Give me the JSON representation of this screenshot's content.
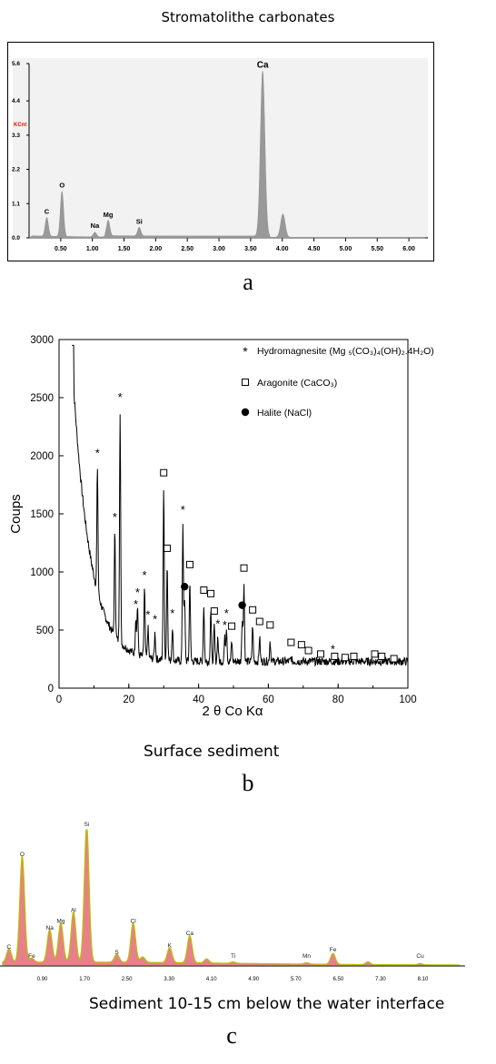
{
  "figure_a": {
    "title": "Stromatolithe carbonates",
    "letter": "a",
    "chart_data": {
      "type": "area",
      "x_ticks": [
        "0.50",
        "1.00",
        "1.50",
        "2.00",
        "2.50",
        "3.00",
        "3.50",
        "4.00",
        "4.50",
        "5.00",
        "5.50",
        "6.00"
      ],
      "y_ticks": [
        "0.0",
        "1.1",
        "2.2",
        "3.3",
        "4.4",
        "5.6"
      ],
      "ylabel": "KCnt",
      "xlim": [
        0,
        6.3
      ],
      "ylim": [
        0,
        5.6
      ],
      "grid": false,
      "peaks": [
        {
          "label": "C",
          "x": 0.28,
          "y": 0.6
        },
        {
          "label": "O",
          "x": 0.52,
          "y": 1.45
        },
        {
          "label": "Na",
          "x": 1.04,
          "y": 0.15
        },
        {
          "label": "Mg",
          "x": 1.25,
          "y": 0.5
        },
        {
          "label": "Si",
          "x": 1.74,
          "y": 0.28
        },
        {
          "label": "Ca",
          "x": 3.69,
          "y": 5.3
        }
      ],
      "unlabeled_peaks": [
        {
          "x": 4.01,
          "y": 0.75
        }
      ]
    }
  },
  "figure_b": {
    "letter": "b",
    "caption": "Surface sediment",
    "chart_data": {
      "type": "line",
      "xlabel": "2 θ Co Kα",
      "ylabel": "Coups",
      "xlim": [
        0,
        100
      ],
      "ylim": [
        0,
        3000
      ],
      "x_ticks": [
        0,
        20,
        40,
        60,
        80,
        100
      ],
      "y_ticks": [
        0,
        500,
        1000,
        1500,
        2000,
        2500,
        3000
      ],
      "legend": [
        {
          "marker": "star",
          "text": "Hydromagnesite (Mg ₅(CO₃)₄(OH)₂.4H₂O)"
        },
        {
          "marker": "square",
          "text": "Aragonite (CaCO₃)"
        },
        {
          "marker": "circle",
          "text": "Halite (NaCl)"
        }
      ],
      "legend_position": "top-right",
      "background_decay": {
        "A": 2600,
        "k": 0.2,
        "base": 230
      },
      "peaks": [
        {
          "x": 11,
          "y": 1950,
          "marker": "star"
        },
        {
          "x": 16,
          "y": 1400,
          "marker": "star"
        },
        {
          "x": 17.5,
          "y": 2430,
          "marker": "star"
        },
        {
          "x": 22,
          "y": 650,
          "marker": "star"
        },
        {
          "x": 22.5,
          "y": 750,
          "marker": "star"
        },
        {
          "x": 24.5,
          "y": 900,
          "marker": "star"
        },
        {
          "x": 25.5,
          "y": 560,
          "marker": "star"
        },
        {
          "x": 27.5,
          "y": 520,
          "marker": "star"
        },
        {
          "x": 30,
          "y": 1760,
          "marker": "square"
        },
        {
          "x": 31,
          "y": 1110,
          "marker": "square"
        },
        {
          "x": 32.5,
          "y": 570,
          "marker": "star"
        },
        {
          "x": 35.5,
          "y": 1460,
          "marker": "star"
        },
        {
          "x": 36,
          "y": 780,
          "marker": "circle"
        },
        {
          "x": 37.5,
          "y": 970,
          "marker": "square"
        },
        {
          "x": 41.5,
          "y": 750,
          "marker": "square"
        },
        {
          "x": 43.5,
          "y": 720,
          "marker": "square"
        },
        {
          "x": 44.5,
          "y": 570,
          "marker": "square"
        },
        {
          "x": 45.5,
          "y": 480,
          "marker": "star"
        },
        {
          "x": 47.5,
          "y": 470,
          "marker": "star"
        },
        {
          "x": 48,
          "y": 570,
          "marker": "star"
        },
        {
          "x": 49.5,
          "y": 440,
          "marker": "square"
        },
        {
          "x": 52.5,
          "y": 620,
          "marker": "circle"
        },
        {
          "x": 53,
          "y": 940,
          "marker": "square"
        },
        {
          "x": 55.5,
          "y": 580,
          "marker": "square"
        },
        {
          "x": 57.5,
          "y": 480,
          "marker": "square"
        },
        {
          "x": 60.5,
          "y": 450,
          "marker": "square"
        },
        {
          "x": 66.5,
          "y": 300,
          "marker": "square"
        },
        {
          "x": 69.5,
          "y": 280,
          "marker": "square"
        },
        {
          "x": 71.5,
          "y": 230,
          "marker": "square"
        },
        {
          "x": 75,
          "y": 200,
          "marker": "square"
        },
        {
          "x": 78.5,
          "y": 260,
          "marker": "star"
        },
        {
          "x": 79,
          "y": 180,
          "marker": "square"
        },
        {
          "x": 82,
          "y": 170,
          "marker": "square"
        },
        {
          "x": 84.5,
          "y": 180,
          "marker": "square"
        },
        {
          "x": 90.5,
          "y": 200,
          "marker": "square"
        },
        {
          "x": 92.5,
          "y": 180,
          "marker": "square"
        },
        {
          "x": 96,
          "y": 160,
          "marker": "square"
        }
      ]
    }
  },
  "figure_c": {
    "letter": "c",
    "caption": "Sediment 10-15 cm below the water interface",
    "chart_data": {
      "type": "area",
      "x_ticks": [
        "0.90",
        "1.70",
        "2.50",
        "3.30",
        "4.10",
        "4.90",
        "5.70",
        "6.50",
        "7.30",
        "8.10"
      ],
      "xlim": [
        0.1,
        8.9
      ],
      "ylim": [
        0,
        100
      ],
      "colors": {
        "fill": "#e8808a",
        "outline": "#b8c000"
      },
      "peaks": [
        {
          "label": "C",
          "x": 0.27,
          "y": 10
        },
        {
          "label": "O",
          "x": 0.52,
          "y": 78
        },
        {
          "label": "Fe",
          "x": 0.7,
          "y": 3
        },
        {
          "label": "Na",
          "x": 1.04,
          "y": 24
        },
        {
          "label": "Mg",
          "x": 1.25,
          "y": 29
        },
        {
          "label": "Al",
          "x": 1.49,
          "y": 37
        },
        {
          "label": "Si",
          "x": 1.74,
          "y": 100
        },
        {
          "label": "S",
          "x": 2.31,
          "y": 6
        },
        {
          "label": "Cl",
          "x": 2.62,
          "y": 29
        },
        {
          "label": "K",
          "x": 3.31,
          "y": 11
        },
        {
          "label": "Ca",
          "x": 3.69,
          "y": 20
        },
        {
          "label": "Ti",
          "x": 4.51,
          "y": 1
        },
        {
          "label": "Mn",
          "x": 5.9,
          "y": 1
        },
        {
          "label": "Fe",
          "x": 6.4,
          "y": 8
        },
        {
          "label": "Cu",
          "x": 8.05,
          "y": 1
        }
      ],
      "unlabeled_peaks": [
        {
          "x": 2.8,
          "y": 4
        },
        {
          "x": 4.01,
          "y": 3
        },
        {
          "x": 7.06,
          "y": 2
        }
      ]
    }
  }
}
